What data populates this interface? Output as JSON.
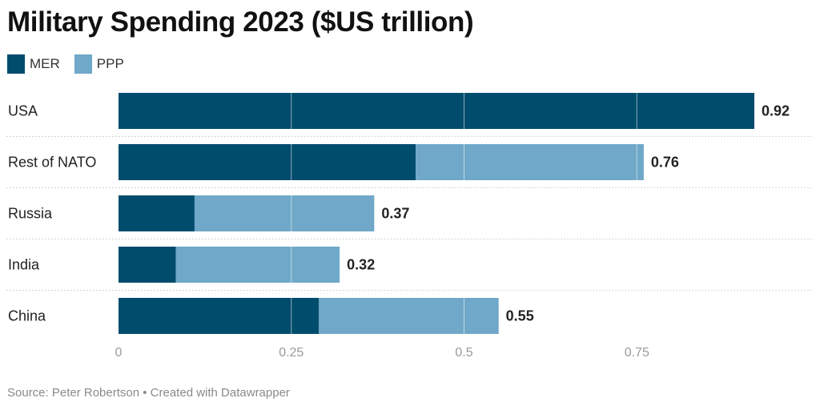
{
  "title": "Military Spending 2023 ($US trillion)",
  "legend": [
    {
      "label": "MER",
      "color": "#004c6d"
    },
    {
      "label": "PPP",
      "color": "#6fa8c8"
    }
  ],
  "footer": "Source: Peter Robertson • Created with Datawrapper",
  "chart_data": {
    "type": "bar",
    "orientation": "horizontal",
    "stacked": true,
    "title": "Military Spending 2023 ($US trillion)",
    "categories": [
      "USA",
      "Rest of NATO",
      "Russia",
      "India",
      "China"
    ],
    "series": [
      {
        "name": "MER",
        "color": "#004c6d",
        "values": [
          0.92,
          0.43,
          0.11,
          0.083,
          0.29
        ]
      },
      {
        "name": "PPP",
        "color": "#6fa8c8",
        "values": [
          0.0,
          0.33,
          0.26,
          0.237,
          0.26
        ]
      }
    ],
    "totals_labels": [
      "0.92",
      "0.76",
      "0.37",
      "0.32",
      "0.55"
    ],
    "x_ticks": [
      0,
      0.25,
      0.5,
      0.75
    ],
    "x_tick_labels": [
      "0",
      "0.25",
      "0.5",
      "0.75"
    ],
    "xlim": [
      0,
      0.92
    ],
    "xlabel": "",
    "ylabel": "",
    "grid": true,
    "legend_position": "top-left"
  }
}
